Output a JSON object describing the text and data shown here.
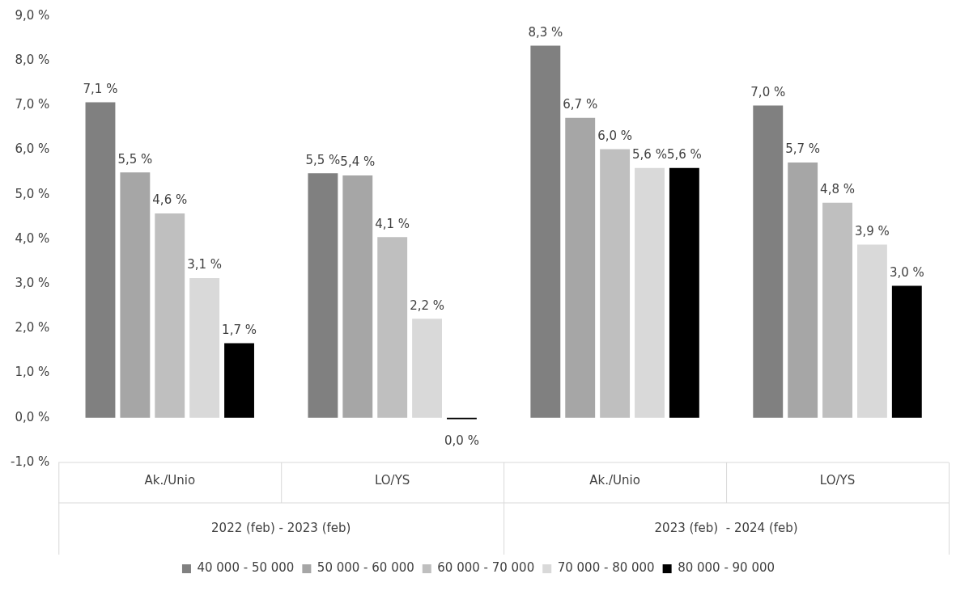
{
  "chart_data": {
    "type": "bar",
    "categories": [
      "Ak./Unio",
      "LO/YS",
      "Ak./Unio",
      "LO/YS"
    ],
    "annotations": [
      "2022 (feb) - 2023 (feb)",
      "2023 (feb)  - 2024 (feb)"
    ],
    "series": [
      {
        "name": "40 000 - 50 000",
        "color": "#808080",
        "values": [
          7.07,
          5.48,
          8.34,
          7.0
        ],
        "value_labels": [
          "7,1 %",
          "5,5 %",
          "8,3 %",
          "7,0 %"
        ]
      },
      {
        "name": "50 000 - 60 000",
        "color": "#a6a6a6",
        "values": [
          5.5,
          5.43,
          6.72,
          5.72
        ],
        "value_labels": [
          "5,5 %",
          "5,4 %",
          "6,7 %",
          "5,7 %"
        ]
      },
      {
        "name": "60 000 - 70 000",
        "color": "#bfbfbf",
        "values": [
          4.58,
          4.05,
          6.02,
          4.82
        ],
        "value_labels": [
          "4,6 %",
          "4,1 %",
          "6,0 %",
          "4,8 %"
        ]
      },
      {
        "name": "70 000 - 80 000",
        "color": "#d9d9d9",
        "values": [
          3.13,
          2.22,
          5.6,
          3.88
        ],
        "value_labels": [
          "3,1 %",
          "2,2 %",
          "5,6 %",
          "3,9 %"
        ]
      },
      {
        "name": "80 000 - 90 000",
        "color": "#000000",
        "values": [
          1.67,
          -0.03,
          5.6,
          2.96
        ],
        "value_labels": [
          "1,7 %",
          "0,0 %",
          "5,6 %",
          "3,0 %"
        ]
      }
    ],
    "ylim": [
      -1,
      9
    ],
    "yticks": [
      {
        "value": -1,
        "label": "-1,0 %"
      },
      {
        "value": 0,
        "label": "0,0 %"
      },
      {
        "value": 1,
        "label": "1,0 %"
      },
      {
        "value": 2,
        "label": "2,0 %"
      },
      {
        "value": 3,
        "label": "3,0 %"
      },
      {
        "value": 4,
        "label": "4,0 %"
      },
      {
        "value": 5,
        "label": "5,0 %"
      },
      {
        "value": 6,
        "label": "6,0 %"
      },
      {
        "value": 7,
        "label": "7,0 %"
      },
      {
        "value": 8,
        "label": "8,0 %"
      },
      {
        "value": 9,
        "label": "9,0 %"
      }
    ],
    "grid": false,
    "legend": "bottom"
  }
}
